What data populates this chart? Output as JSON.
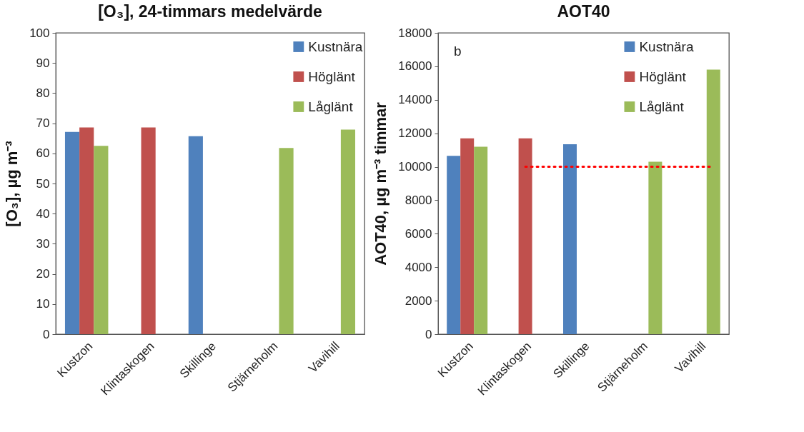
{
  "chart_data": [
    {
      "type": "bar",
      "title": "[O₃], 24-timmars medelvärde",
      "ylabel": "[O₃], µg m⁻³",
      "categories": [
        "Kustzon",
        "Klintaskogen",
        "Skillinge",
        "Stjärneholm",
        "Vavihill"
      ],
      "series": [
        {
          "name": "Kustnära",
          "color": "#4f81bd",
          "values": [
            67.1,
            null,
            65.7,
            null,
            null
          ]
        },
        {
          "name": "Höglänt",
          "color": "#c0504d",
          "values": [
            68.6,
            68.6,
            null,
            null,
            null
          ]
        },
        {
          "name": "Låglänt",
          "color": "#9bbb59",
          "values": [
            62.5,
            null,
            null,
            61.8,
            67.9
          ]
        }
      ],
      "ylim": [
        0,
        100
      ],
      "yticks": [
        0,
        10,
        20,
        30,
        40,
        50,
        60,
        70,
        80,
        90,
        100
      ],
      "grid": false,
      "legend": "top right"
    },
    {
      "type": "bar",
      "title": "AOT40",
      "ylabel": "AOT40, µg m⁻³ timmar",
      "categories": [
        "Kustzon",
        "Klintaskogen",
        "Skillinge",
        "Stjärneholm",
        "Vavihill"
      ],
      "series": [
        {
          "name": "Kustnära",
          "color": "#4f81bd",
          "values": [
            10650,
            null,
            11350,
            null,
            null
          ]
        },
        {
          "name": "Höglänt",
          "color": "#c0504d",
          "values": [
            11700,
            11700,
            null,
            null,
            null
          ]
        },
        {
          "name": "Låglänt",
          "color": "#9bbb59",
          "values": [
            11200,
            null,
            null,
            10300,
            15800
          ]
        }
      ],
      "ylim": [
        0,
        18000
      ],
      "yticks": [
        0,
        2000,
        4000,
        6000,
        8000,
        10000,
        12000,
        14000,
        16000,
        18000
      ],
      "grid": false,
      "legend": "top right",
      "ref_lines": [
        {
          "axis": "y",
          "value": 10000,
          "color": "#ff0000",
          "line_style": "dotted"
        }
      ],
      "annotations": [
        "b"
      ]
    }
  ]
}
